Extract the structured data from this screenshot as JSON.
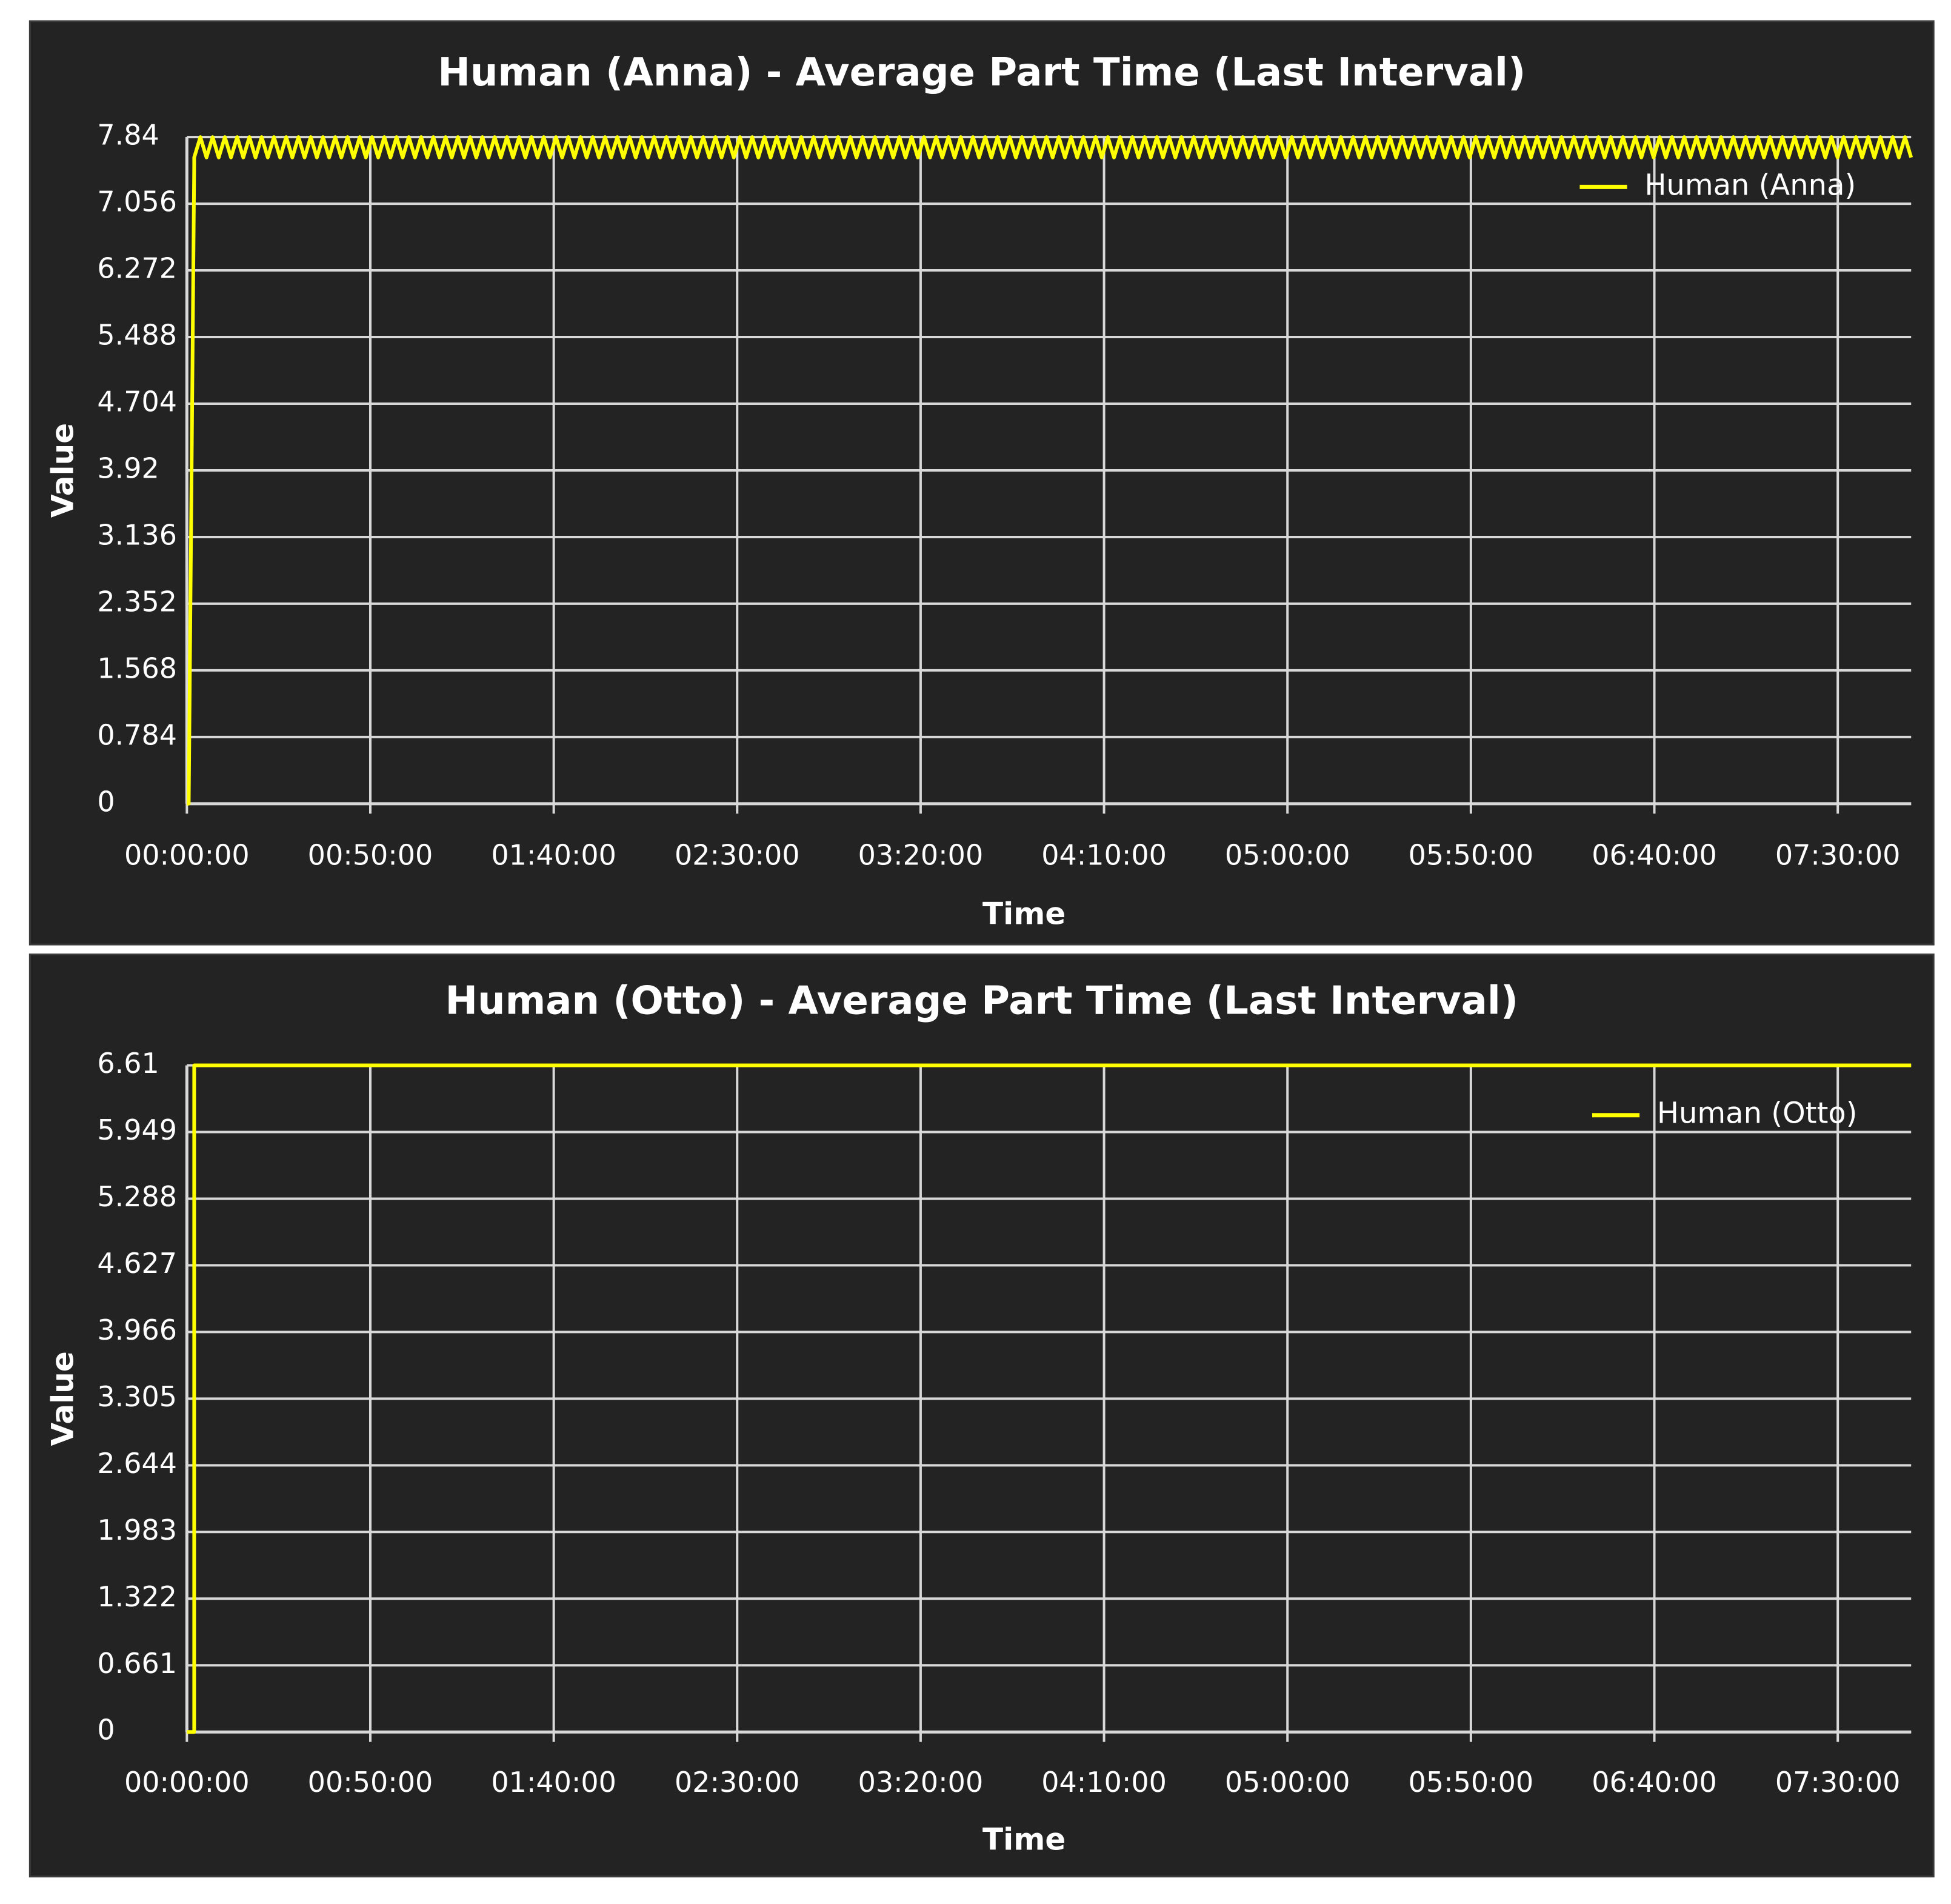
{
  "chart_data": [
    {
      "type": "line",
      "title": "Human (Anna) - Average Part Time (Last Interval)",
      "xlabel": "Time",
      "ylabel": "Value",
      "y_tick_labels": [
        "0",
        "0.784",
        "1.568",
        "2.352",
        "3.136",
        "3.92",
        "4.704",
        "5.488",
        "6.272",
        "7.056",
        "7.84"
      ],
      "x_tick_labels": [
        "00:00:00",
        "00:50:00",
        "01:40:00",
        "02:30:00",
        "03:20:00",
        "04:10:00",
        "05:00:00",
        "05:50:00",
        "06:40:00",
        "07:30:00"
      ],
      "ylim": [
        0,
        7.84
      ],
      "xlim": [
        "00:00:00",
        "07:50:00"
      ],
      "grid": true,
      "legend_position": "top-right",
      "series": [
        {
          "name": "Human (Anna)",
          "color": "#ffff00",
          "pattern": "oscillating",
          "oscillation_min": 7.6,
          "oscillation_max": 7.84,
          "oscillation_count": 140,
          "x": [
            "00:00:00",
            "00:00:30",
            "00:02:00",
            "07:50:00"
          ],
          "y": [
            0,
            0,
            7.5,
            7.72
          ]
        }
      ]
    },
    {
      "type": "line",
      "title": "Human (Otto) - Average Part Time (Last Interval)",
      "xlabel": "Time",
      "ylabel": "Value",
      "y_tick_labels": [
        "0",
        "0.661",
        "1.322",
        "1.983",
        "2.644",
        "3.305",
        "3.966",
        "4.627",
        "5.288",
        "5.949",
        "6.61"
      ],
      "x_tick_labels": [
        "00:00:00",
        "00:50:00",
        "01:40:00",
        "02:30:00",
        "03:20:00",
        "04:10:00",
        "05:00:00",
        "05:50:00",
        "06:40:00",
        "07:30:00"
      ],
      "ylim": [
        0,
        6.61
      ],
      "xlim": [
        "00:00:00",
        "07:50:00"
      ],
      "grid": true,
      "legend_position": "top-right",
      "series": [
        {
          "name": "Human (Otto)",
          "color": "#ffff00",
          "pattern": "flat",
          "x": [
            "00:00:00",
            "00:02:00",
            "00:02:00",
            "07:50:00"
          ],
          "y": [
            0,
            0,
            6.61,
            6.61
          ]
        }
      ]
    }
  ]
}
